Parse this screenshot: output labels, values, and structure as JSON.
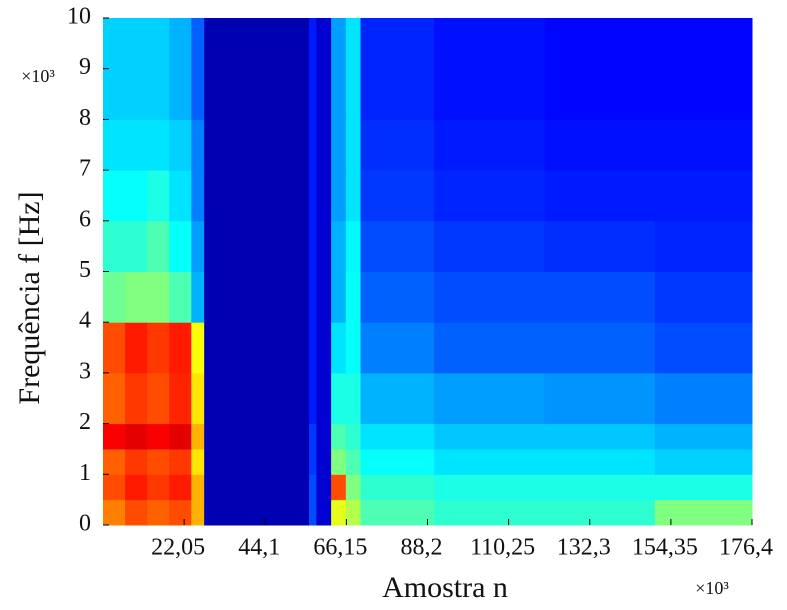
{
  "chart_data": {
    "type": "heatmap",
    "x_label": "Amostra n",
    "y_label": "Frequência f [Hz]",
    "x_multiplier": "×10³",
    "y_multiplier": "×10³",
    "colormap": "jet",
    "clim": [
      0,
      1
    ],
    "xlim": [
      0,
      176.4
    ],
    "ylim": [
      0,
      10
    ],
    "xticks": [
      {
        "value": 22.05,
        "label": "22,05"
      },
      {
        "value": 44.1,
        "label": "44,1"
      },
      {
        "value": 66.15,
        "label": "66,15"
      },
      {
        "value": 88.2,
        "label": "88,2"
      },
      {
        "value": 110.25,
        "label": "110,25"
      },
      {
        "value": 132.3,
        "label": "132,3"
      },
      {
        "value": 154.35,
        "label": "154,35"
      },
      {
        "value": 176.4,
        "label": "176,4"
      }
    ],
    "yticks": [
      0,
      1,
      2,
      3,
      4,
      5,
      6,
      7,
      8,
      9,
      10
    ],
    "x_edges": [
      0,
      6,
      12,
      18,
      24,
      27.5,
      56,
      58,
      62,
      66,
      70,
      90,
      120,
      150,
      176.4
    ],
    "y_edges": [
      0,
      0.5,
      1,
      1.5,
      2,
      3,
      4,
      5,
      6,
      7,
      8,
      10
    ],
    "values": [
      [
        0.75,
        0.8,
        0.78,
        0.8,
        0.7,
        0.05,
        0.2,
        0.08,
        0.6,
        0.55,
        0.45,
        0.42,
        0.42,
        0.5
      ],
      [
        0.8,
        0.85,
        0.82,
        0.85,
        0.7,
        0.05,
        0.2,
        0.08,
        0.8,
        0.5,
        0.42,
        0.4,
        0.4,
        0.4
      ],
      [
        0.78,
        0.82,
        0.8,
        0.82,
        0.65,
        0.05,
        0.18,
        0.08,
        0.5,
        0.45,
        0.38,
        0.35,
        0.35,
        0.33
      ],
      [
        0.88,
        0.9,
        0.88,
        0.9,
        0.7,
        0.05,
        0.18,
        0.08,
        0.45,
        0.42,
        0.35,
        0.32,
        0.32,
        0.3
      ],
      [
        0.78,
        0.82,
        0.8,
        0.84,
        0.65,
        0.05,
        0.15,
        0.08,
        0.4,
        0.4,
        0.3,
        0.28,
        0.27,
        0.25
      ],
      [
        0.8,
        0.85,
        0.82,
        0.85,
        0.62,
        0.05,
        0.15,
        0.08,
        0.35,
        0.38,
        0.25,
        0.22,
        0.22,
        0.2
      ],
      [
        0.48,
        0.5,
        0.5,
        0.45,
        0.3,
        0.05,
        0.15,
        0.08,
        0.3,
        0.38,
        0.22,
        0.2,
        0.2,
        0.18
      ],
      [
        0.42,
        0.42,
        0.45,
        0.38,
        0.28,
        0.05,
        0.15,
        0.08,
        0.3,
        0.37,
        0.2,
        0.18,
        0.17,
        0.16
      ],
      [
        0.38,
        0.38,
        0.4,
        0.35,
        0.25,
        0.05,
        0.15,
        0.08,
        0.28,
        0.35,
        0.18,
        0.16,
        0.15,
        0.15
      ],
      [
        0.35,
        0.35,
        0.35,
        0.33,
        0.25,
        0.05,
        0.15,
        0.08,
        0.28,
        0.35,
        0.17,
        0.15,
        0.14,
        0.14
      ],
      [
        0.33,
        0.33,
        0.33,
        0.3,
        0.22,
        0.05,
        0.15,
        0.08,
        0.28,
        0.35,
        0.16,
        0.14,
        0.13,
        0.13
      ]
    ]
  }
}
